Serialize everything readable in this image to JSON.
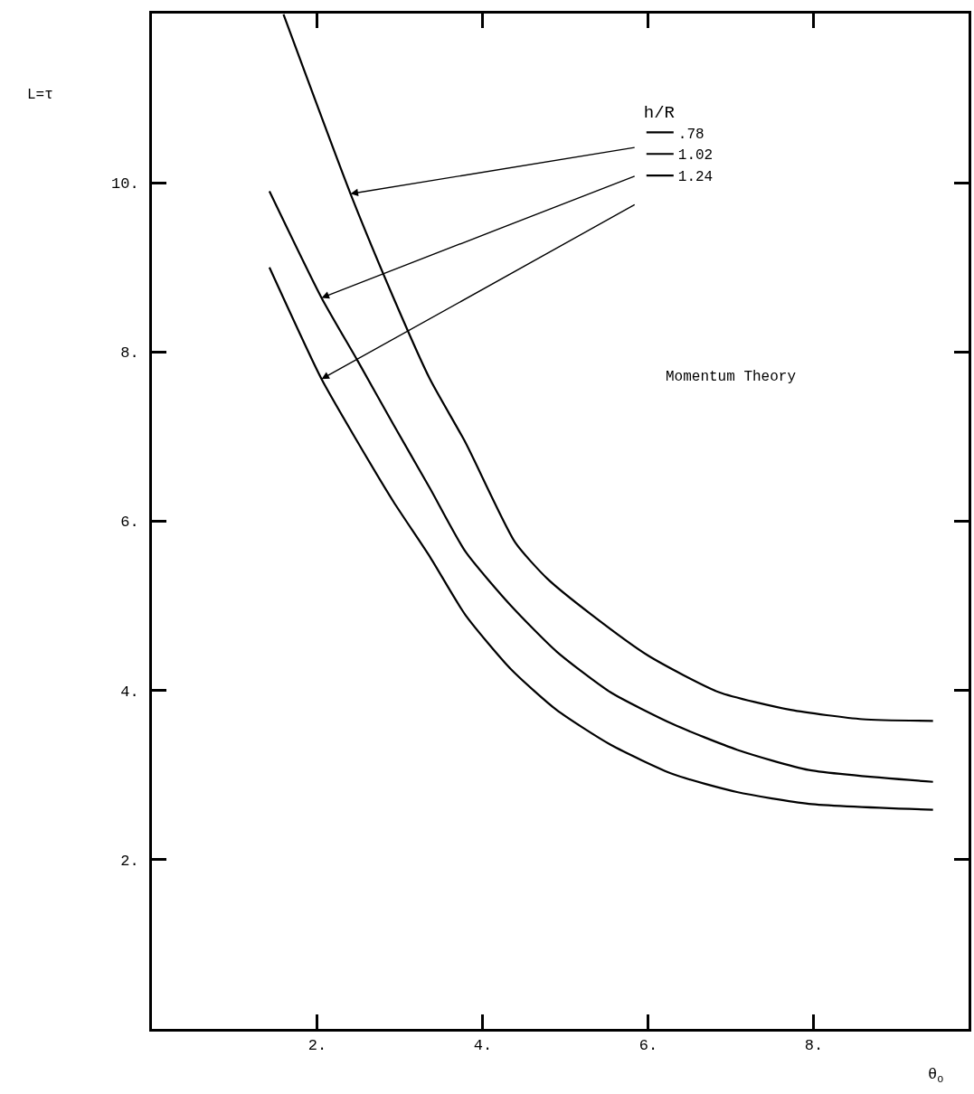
{
  "chart_data": {
    "type": "line",
    "xlabel": "θ$_{o}$",
    "ylabel": "L=τ",
    "legend_title": "h/R",
    "annotations": [
      "Momentum Theory"
    ],
    "xlim": [
      0,
      9.87
    ],
    "ylim": [
      0,
      12
    ],
    "xticks": [
      {
        "value": 2,
        "label": "2."
      },
      {
        "value": 4,
        "label": "4."
      },
      {
        "value": 6,
        "label": "6."
      },
      {
        "value": 8,
        "label": "8."
      }
    ],
    "yticks": [
      {
        "value": 2,
        "label": "2."
      },
      {
        "value": 4,
        "label": "4."
      },
      {
        "value": 6,
        "label": "6."
      },
      {
        "value": 8,
        "label": "8."
      },
      {
        "value": 10,
        "label": "10."
      }
    ],
    "marker": "none",
    "legend": "top right",
    "series": [
      {
        "name": ".78",
        "color": "#000000",
        "x": [
          1.59,
          2.4,
          2.92,
          3.36,
          3.79,
          4.39,
          4.78,
          5.32,
          6.0,
          6.85,
          7.72,
          8.59,
          9.44
        ],
        "values": [
          11.99,
          9.87,
          8.64,
          7.68,
          6.93,
          5.75,
          5.32,
          4.89,
          4.41,
          3.98,
          3.77,
          3.66,
          3.64
        ]
      },
      {
        "name": "1.02",
        "color": "#000000",
        "x": [
          1.42,
          2.05,
          2.49,
          2.92,
          3.36,
          3.79,
          4.34,
          4.89,
          5.54,
          6.3,
          7.07,
          7.94,
          9.44
        ],
        "values": [
          9.9,
          8.64,
          7.89,
          7.14,
          6.39,
          5.64,
          5.0,
          4.46,
          3.98,
          3.6,
          3.3,
          3.06,
          2.92
        ]
      },
      {
        "name": "1.24",
        "color": "#000000",
        "x": [
          1.42,
          2.05,
          2.49,
          2.92,
          3.36,
          3.79,
          4.34,
          4.89,
          5.54,
          6.3,
          7.07,
          7.94,
          9.44
        ],
        "values": [
          9.0,
          7.68,
          6.93,
          6.23,
          5.58,
          4.89,
          4.25,
          3.77,
          3.36,
          3.01,
          2.8,
          2.66,
          2.59
        ]
      }
    ]
  }
}
